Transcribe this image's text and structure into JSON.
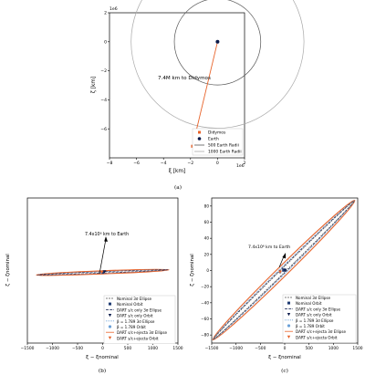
{
  "chart_data": [
    {
      "type": "scatter",
      "panel_caption": "(a)",
      "xlabel": "ξ [km]",
      "ylabel": "ζ [km]",
      "x_offset_label": "1e6",
      "y_offset_label": "1e6",
      "xlim": [
        -8,
        2
      ],
      "ylim": [
        -8,
        2
      ],
      "xticks": [
        -8,
        -6,
        -4,
        -2,
        0,
        2
      ],
      "yticks": [
        -6,
        -4,
        -2,
        0,
        2
      ],
      "annotation": "7.4M km to Didymos",
      "circles": [
        {
          "name": "500 Earth Radii",
          "radius": 3.2
        },
        {
          "name": "1000 Earth Radii",
          "radius": 6.4
        }
      ],
      "series": [
        {
          "name": "Didymos",
          "x": [
            -1.85
          ],
          "y": [
            -7.2
          ],
          "color": "#e8632a",
          "marker": "square"
        },
        {
          "name": "Earth",
          "x": [
            0
          ],
          "y": [
            0
          ],
          "color": "#0b1a4a",
          "marker": "circle"
        }
      ],
      "legend": [
        "Didymos",
        "Earth",
        "500 Earth Radii",
        "1000 Earth Radii"
      ],
      "legend_position": "lower-right"
    },
    {
      "type": "line",
      "panel_caption": "(b)",
      "xlabel": "ξ − ξnominal",
      "ylabel": "ζ − ζnominal",
      "xlim": [
        -1500,
        1500
      ],
      "ylim": [
        -1500,
        1500
      ],
      "xticks": [
        -1500,
        -1000,
        -500,
        0,
        500,
        1000,
        1500
      ],
      "annotation": "7.4x10⁶ km to Earth",
      "ellipse_semi_axes": [
        1320,
        24
      ],
      "legend": [
        "Nominal 3σ Ellipse",
        "Nominal Orbit",
        "DART s/c only 3σ Ellipse",
        "DART s/c only Orbit",
        "β = 1.789 3σ Ellipse",
        "β = 1.789 Orbit",
        "DART s/c+ejecta 3σ Ellipse",
        "DART s/c+ejecta Orbit"
      ]
    },
    {
      "type": "line",
      "panel_caption": "(c)",
      "xlabel": "ξ − ξnominal",
      "ylabel": "ζ − ζnominal",
      "xlim": [
        -1500,
        1500
      ],
      "ylim": [
        -1500,
        1500
      ],
      "xticks": [
        -1500,
        -1000,
        -500,
        0,
        500,
        1000,
        1500
      ],
      "yticks": [
        -80,
        -60,
        -40,
        -20,
        0,
        20,
        40,
        60,
        80
      ],
      "annotation": "7.4x10⁶ km to Earth",
      "legend": [
        "Nominal 3σ Ellipse",
        "Nominal Orbit",
        "DART s/c only 3σ Ellipse",
        "DART s/c only Orbit",
        "β = 1.789 3σ Ellipse",
        "β = 1.789 Orbit",
        "DART s/c+ejecta 3σ Ellipse",
        "DART s/c+ejecta Orbit"
      ]
    }
  ]
}
